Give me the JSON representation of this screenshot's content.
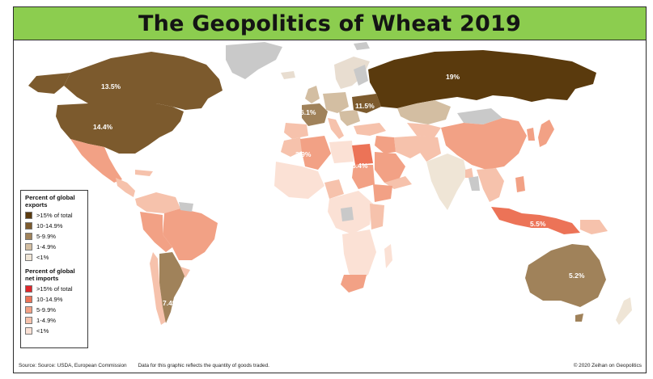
{
  "title": "The Geopolitics of Wheat 2019",
  "legend": {
    "exports_heading": "Percent of global exports",
    "exports_items": [
      {
        "label": ">15% of total",
        "color": "#5a3a0d"
      },
      {
        "label": "10-14.9%",
        "color": "#7c5a2d"
      },
      {
        "label": "5-9.9%",
        "color": "#a0825a"
      },
      {
        "label": "1-4.9%",
        "color": "#d3bea2"
      },
      {
        "label": "<1%",
        "color": "#efe5d6"
      }
    ],
    "imports_heading": "Percent of global net imports",
    "imports_items": [
      {
        "label": ">15% of total",
        "color": "#e0262a"
      },
      {
        "label": "10-14.9%",
        "color": "#ec7357"
      },
      {
        "label": "5-9.9%",
        "color": "#f2a185"
      },
      {
        "label": "1-4.9%",
        "color": "#f6c2ac"
      },
      {
        "label": "<1%",
        "color": "#fbe1d5"
      }
    ]
  },
  "map_labels": {
    "canada": "13.5%",
    "usa": "14.4%",
    "russia": "19%",
    "france": "6.1%",
    "ukraine": "11.5%",
    "algeria": "3.9%",
    "egypt": "6.4%",
    "indonesia": "5.5%",
    "australia": "5.2%",
    "argentina": "7.4%"
  },
  "colors": {
    "title_bar": "#8ccd4f",
    "no_data": "#c9c9c9",
    "ocean": "#ffffff"
  },
  "footer": {
    "source": "Source: Source: USDA, European Commission",
    "note": "Data for this graphic reflects the quantity of goods traded.",
    "copyright": "© 2020 Zeihan on Geopolitics"
  }
}
